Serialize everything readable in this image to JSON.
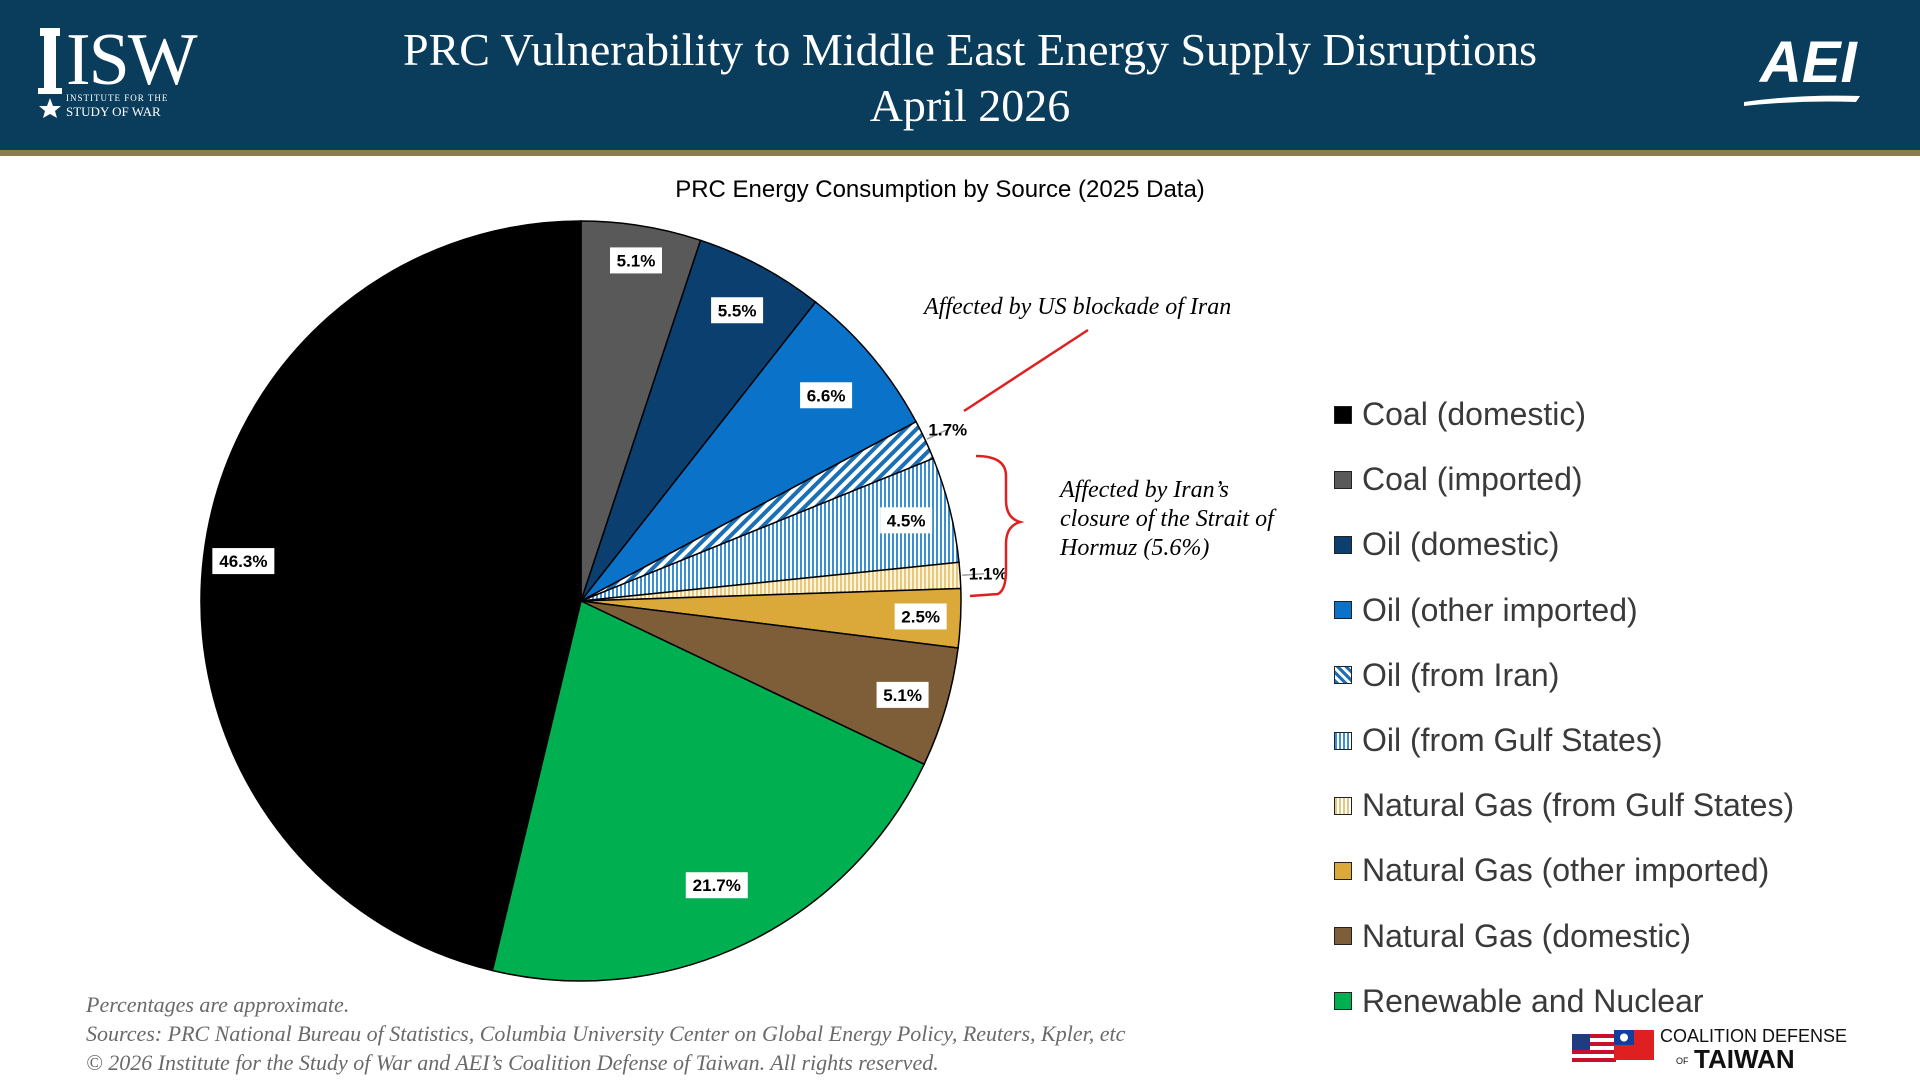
{
  "header": {
    "title_line1": "PRC Vulnerability to Middle East Energy Supply Disruptions",
    "title_line2": "April 2026",
    "isw_logo_text": "ISW",
    "isw_logo_sub1": "INSTITUTE FOR THE",
    "isw_logo_sub2": "STUDY OF WAR",
    "aei_logo_text": "AEI"
  },
  "colors": {
    "header_bg": "#0a3d5c",
    "header_stripe": "#8a7d52",
    "annotation_line": "#e02020"
  },
  "chart_data": {
    "type": "pie",
    "title": "PRC Energy Consumption by Source (2025 Data)",
    "slices": [
      {
        "name": "Coal (domestic)",
        "value": 46.3,
        "label": "46.3%",
        "color": "#000000",
        "pattern": "solid"
      },
      {
        "name": "Coal (imported)",
        "value": 5.1,
        "label": "5.1%",
        "color": "#595959",
        "pattern": "solid"
      },
      {
        "name": "Oil (domestic)",
        "value": 5.5,
        "label": "5.5%",
        "color": "#0b3f6f",
        "pattern": "solid"
      },
      {
        "name": "Oil (other imported)",
        "value": 6.6,
        "label": "6.6%",
        "color": "#0a72c9",
        "pattern": "solid"
      },
      {
        "name": "Oil (from Iran)",
        "value": 1.7,
        "label": "1.7%",
        "color": "#1a6fb5",
        "pattern": "diagonal"
      },
      {
        "name": "Oil (from Gulf States)",
        "value": 4.5,
        "label": "4.5%",
        "color": "#3c8fd0",
        "pattern": "vertical"
      },
      {
        "name": "Natural Gas (from Gulf States)",
        "value": 1.1,
        "label": "1.1%",
        "color": "#e6c77b",
        "pattern": "vertical"
      },
      {
        "name": "Natural Gas (other imported)",
        "value": 2.5,
        "label": "2.5%",
        "color": "#daa93a",
        "pattern": "solid"
      },
      {
        "name": "Natural Gas (domestic)",
        "value": 5.1,
        "label": "5.1%",
        "color": "#7d5e38",
        "pattern": "solid"
      },
      {
        "name": "Renewable and Nuclear",
        "value": 21.7,
        "label": "21.7%",
        "color": "#00b050",
        "pattern": "solid"
      }
    ],
    "legend_position": "right",
    "annotations": [
      "Affected by US blockade of Iran",
      "Affected by Iran’s closure of the Strait of Hormuz (5.6%)"
    ]
  },
  "annotation_iran": "Affected by US blockade of Iran",
  "annotation_hormuz": {
    "line1": "Affected by Iran’s",
    "line2": "closure of the Strait of",
    "line3": "Hormuz (5.6%)"
  },
  "footer": {
    "note": "Percentages are approximate.",
    "sources": "Sources: PRC National Bureau of Statistics, Columbia University Center on Global Energy Policy, Reuters, Kpler, etc",
    "copyright": "© 2026 Institute for the Study of War and AEI’s Coalition Defense of Taiwan. All rights reserved.",
    "cdt_logo_line1": "COALITION DEFENSE",
    "cdt_logo_of": "OF",
    "cdt_logo_line2": "TAIWAN"
  }
}
